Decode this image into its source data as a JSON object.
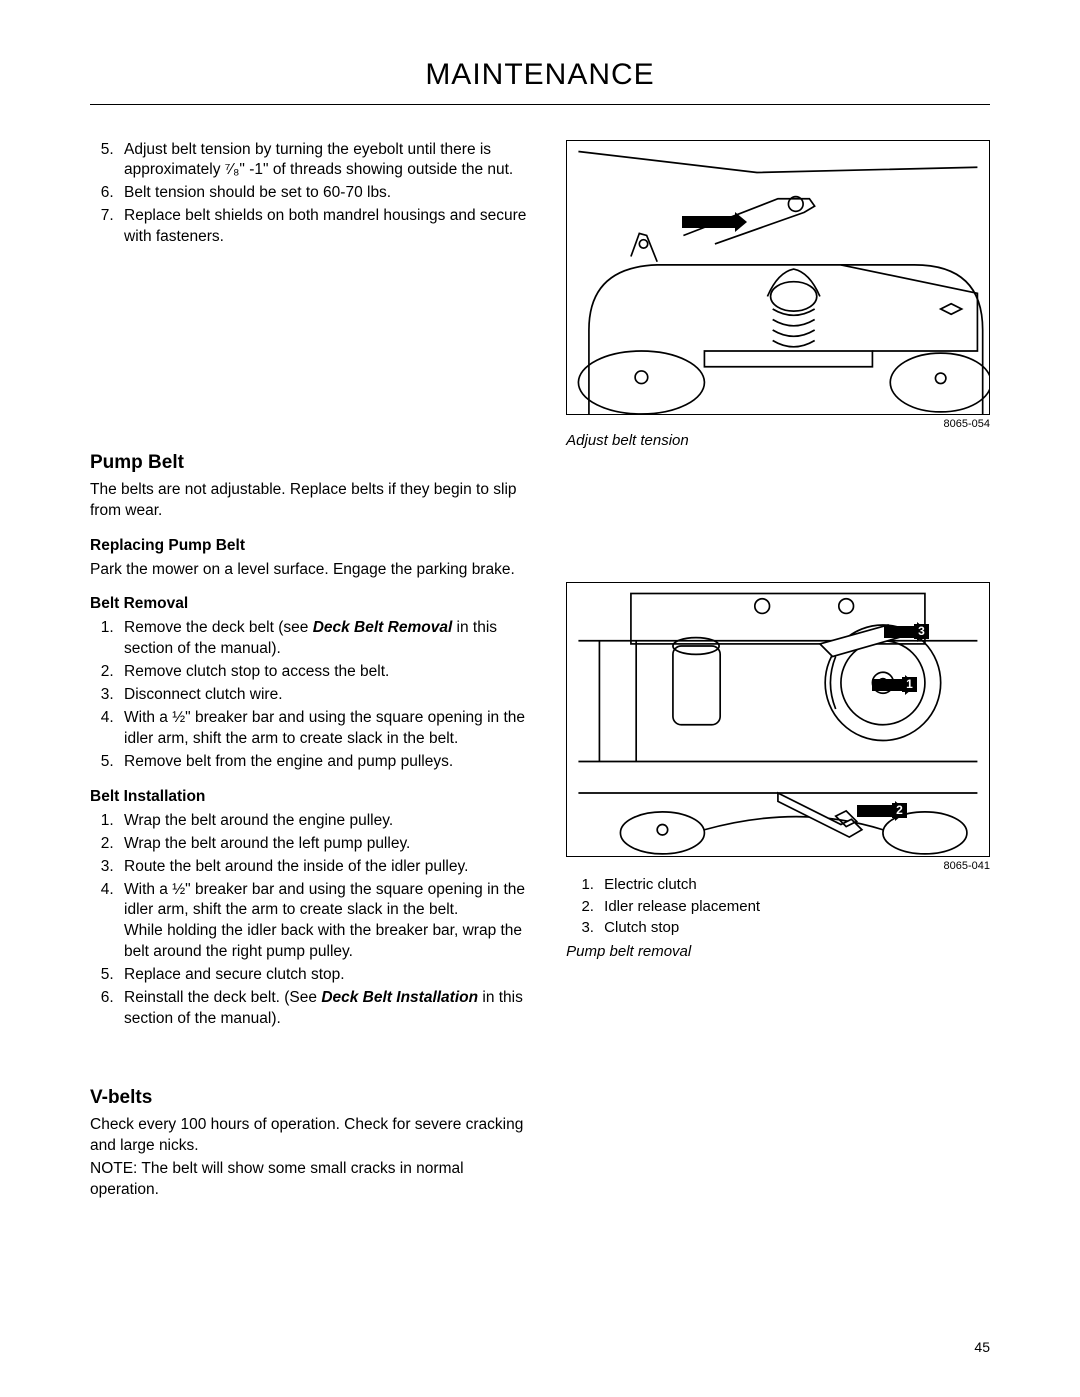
{
  "title": "MAINTENANCE",
  "left": {
    "topList": {
      "start": 5,
      "items": [
        "Adjust belt tension by turning the eyebolt until there is approximately ⁷⁄₈\" -1\" of threads showing outside the nut.",
        "Belt tension should be set to 60-70 lbs.",
        "Replace belt shields on both mandrel housings and secure with fasteners."
      ]
    },
    "pumpBelt": {
      "heading": "Pump Belt",
      "intro": "The belts are not adjustable. Replace belts if they begin to slip from wear.",
      "replacingHeading": "Replacing Pump Belt",
      "replacingText": "Park the mower on a level surface. Engage the parking brake.",
      "removalHeading": "Belt Removal",
      "removalList": [
        "Remove the deck belt (see <b><i>Deck Belt Removal</i></b> in this section of the manual).",
        "Remove clutch stop to access the belt.",
        "Disconnect clutch wire.",
        "With a ½\" breaker bar and using the square opening in the idler arm, shift the arm to create slack in the belt.",
        "Remove belt from the engine and pump pulleys."
      ],
      "installHeading": "Belt Installation",
      "installList": [
        "Wrap the belt around the engine pulley.",
        "Wrap the belt around the left pump pulley.",
        "Route the belt around the inside of the idler pulley.",
        "With a ½\" breaker bar and using the square opening in the idler arm, shift the arm to create slack in the belt.\nWhile holding the idler back with the breaker bar, wrap the belt around the right pump pulley.",
        "Replace and secure clutch stop.",
        "Reinstall the deck belt. (See <b><i>Deck Belt Installation</i></b> in this section of the manual)."
      ]
    },
    "vbelts": {
      "heading": "V-belts",
      "p1": "Check every 100 hours of operation. Check for severe cracking and large nicks.",
      "p2": "NOTE: The belt will show some small cracks in normal operation."
    }
  },
  "right": {
    "fig1": {
      "code": "8065-054",
      "caption": "Adjust belt tension"
    },
    "fig2": {
      "code": "8065-041",
      "callouts": [
        "1",
        "2",
        "3"
      ],
      "legend": [
        "Electric clutch",
        "Idler release placement",
        "Clutch stop"
      ],
      "caption": "Pump belt removal"
    }
  },
  "pageNum": "45"
}
